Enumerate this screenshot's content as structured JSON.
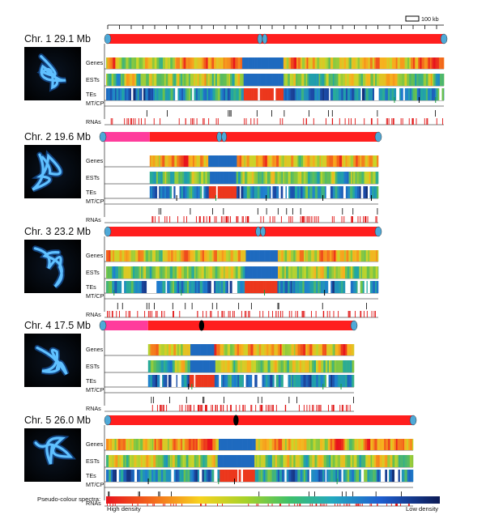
{
  "scale_bar": {
    "label": "100 kb"
  },
  "track_labels": [
    "Genes",
    "ESTs",
    "TEs",
    "MT/CP",
    "RNAs"
  ],
  "chromosomes": [
    {
      "name": "Chr. 1",
      "size": "29.1 Mb",
      "length_mb": 29.1,
      "centromere_fraction": 0.46,
      "nor_fraction": 0.0,
      "seed": 11
    },
    {
      "name": "Chr. 2",
      "size": "19.6 Mb",
      "length_mb": 19.6,
      "centromere_fraction": 0.315,
      "nor_fraction": 0.17,
      "seed": 23
    },
    {
      "name": "Chr. 3",
      "size": "23.2 Mb",
      "length_mb": 23.2,
      "centromere_fraction": 0.565,
      "nor_fraction": 0.0,
      "seed": 37
    },
    {
      "name": "Chr. 4",
      "size": "17.5 Mb",
      "length_mb": 17.5,
      "centromere_fraction": 0.26,
      "nor_fraction": 0.18,
      "seed": 41
    },
    {
      "name": "Chr. 5",
      "size": "26.0 Mb",
      "length_mb": 26.0,
      "centromere_fraction": 0.42,
      "nor_fraction": 0.0,
      "seed": 53
    }
  ],
  "legend": {
    "label": "Pseudo-colour spectra:",
    "high": "High density",
    "low": "Low density"
  },
  "colors": {
    "chromosome_arm": "#ff1e1e",
    "nor_region": "#ff3c9c",
    "telomere_cap": "#4ea9d8",
    "centromere_dot": "#000000",
    "mtcp_tick": "#1a9a3a",
    "rna_tick": "#e01010",
    "spectrum": [
      "#e8141c",
      "#f36b1c",
      "#f7b21e",
      "#c9d62a",
      "#6cc24a",
      "#22a8a0",
      "#1f7fd0",
      "#1c4aa6",
      "#10225e"
    ]
  }
}
